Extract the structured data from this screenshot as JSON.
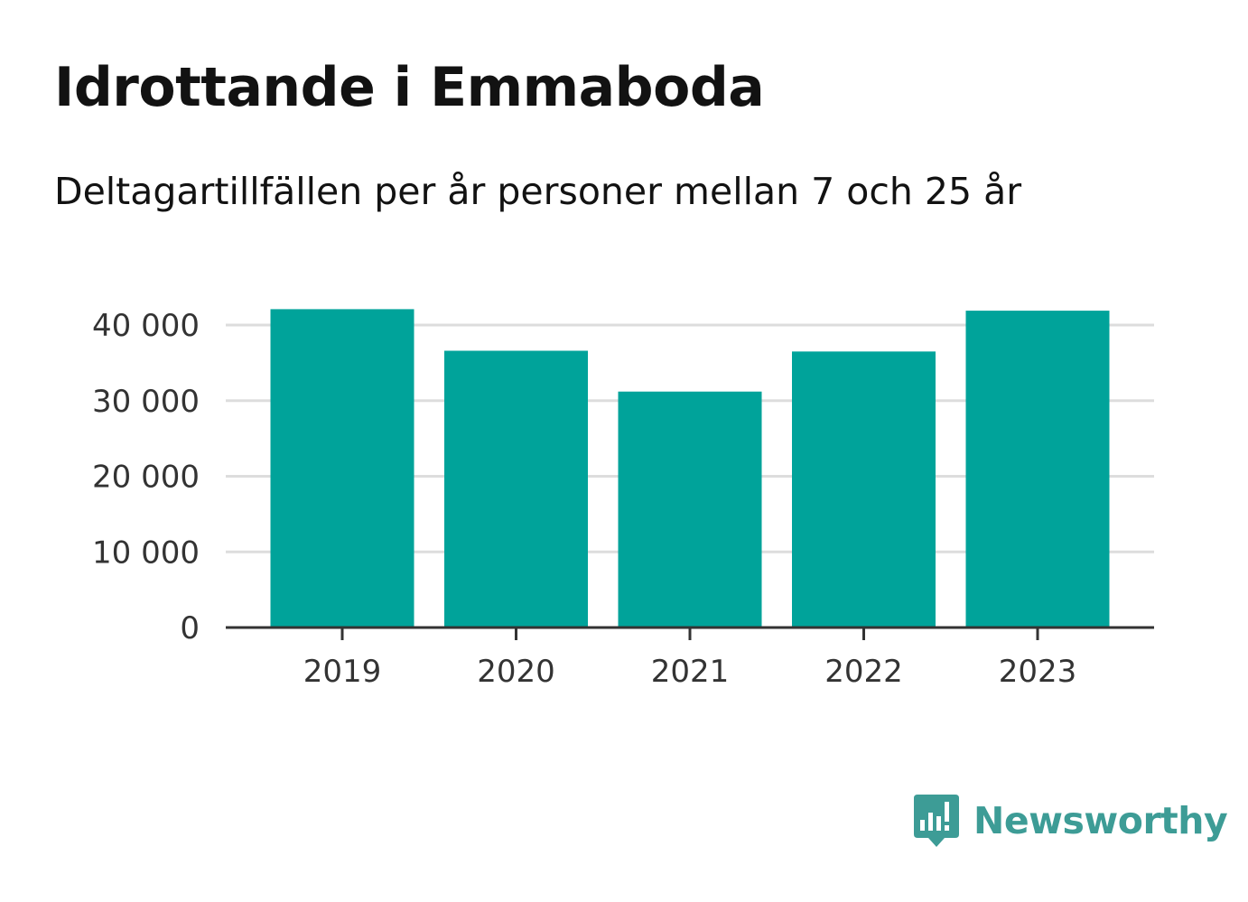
{
  "header": {
    "title": "Idrottande i Emmaboda",
    "subtitle": "Deltagartillfällen per år personer mellan 7 och 25 år"
  },
  "brand": {
    "name": "Newsworthy",
    "color": "#3d9c96"
  },
  "chart_data": {
    "type": "bar",
    "categories": [
      "2019",
      "2020",
      "2021",
      "2022",
      "2023"
    ],
    "values": [
      42100,
      36600,
      31200,
      36500,
      41900
    ],
    "ylim": [
      0,
      40000
    ],
    "yticks": [
      0,
      10000,
      20000,
      30000,
      40000
    ],
    "ytick_labels": [
      "0",
      "10 000",
      "20 000",
      "30 000",
      "40 000"
    ],
    "grid": true,
    "bar_color": "#00a39a"
  }
}
